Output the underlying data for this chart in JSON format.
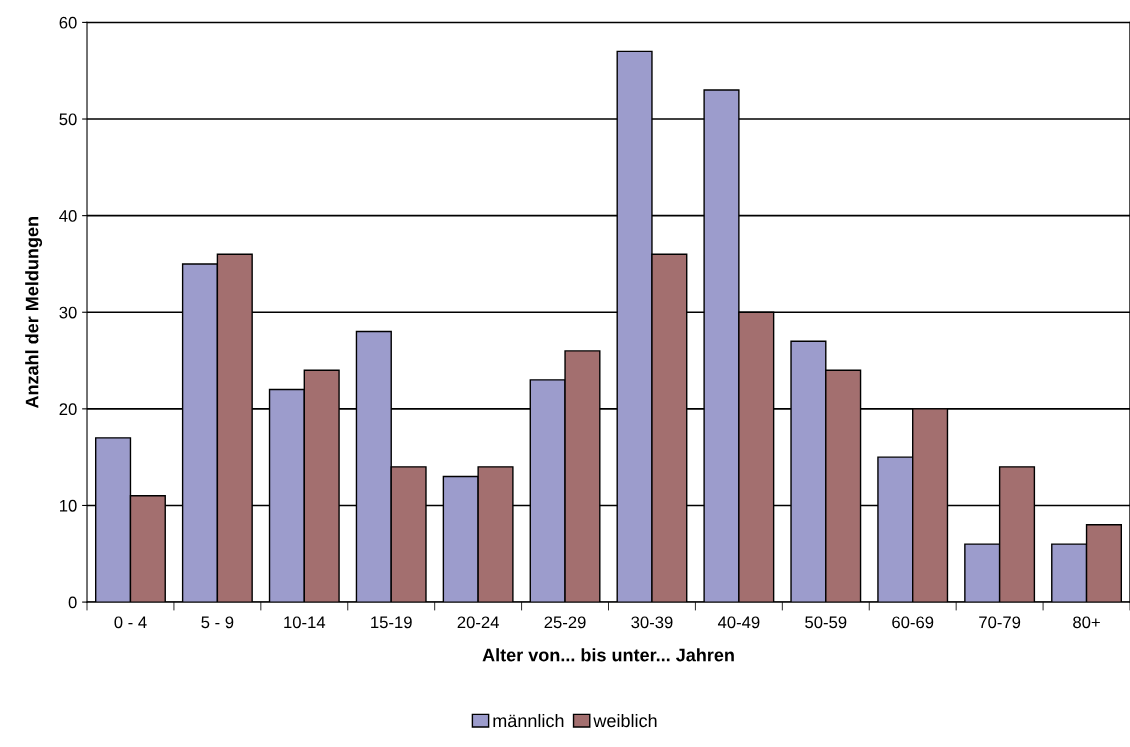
{
  "chart_data": {
    "type": "bar",
    "xlabel": "Alter von... bis unter... Jahren",
    "ylabel": "Anzahl der Meldungen",
    "categories": [
      "0 - 4",
      "5 - 9",
      "10-14",
      "15-19",
      "20-24",
      "25-29",
      "30-39",
      "40-49",
      "50-59",
      "60-69",
      "70-79",
      "80+"
    ],
    "series": [
      {
        "name": "männlich",
        "color": "#9c9ccc",
        "values": [
          17,
          35,
          22,
          28,
          13,
          23,
          57,
          53,
          27,
          15,
          6,
          6
        ]
      },
      {
        "name": "weiblich",
        "color": "#a36f6f",
        "values": [
          11,
          36,
          24,
          14,
          14,
          26,
          36,
          30,
          24,
          20,
          14,
          8
        ]
      }
    ],
    "ylim": [
      0,
      60
    ],
    "yticks": [
      0,
      10,
      20,
      30,
      40,
      50,
      60
    ],
    "grid": "y",
    "legend": "bottom"
  }
}
